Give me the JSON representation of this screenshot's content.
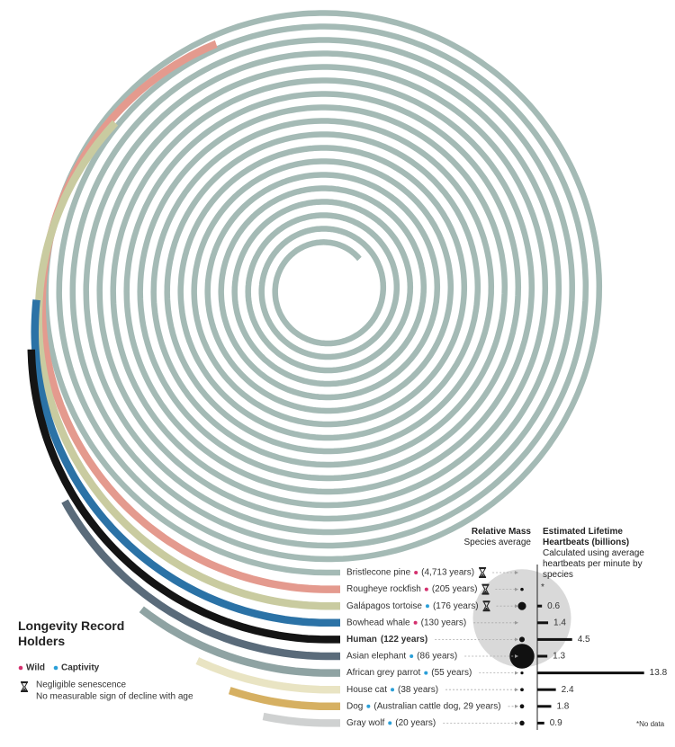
{
  "chart_data": {
    "type": "spiral",
    "title": "Longevity Record Holders",
    "legend": {
      "wild": {
        "label": "Wild",
        "color": "#d4306e"
      },
      "captivity": {
        "label": "Captivity",
        "color": "#2a9fd8"
      },
      "senescence": "Negligible senescence",
      "senescence_note": "No measurable sign of decline with age"
    },
    "mass_title": "Relative Mass",
    "mass_subtitle": "Species average",
    "heartbeats_title": "Estimated Lifetime Heartbeats (billions)",
    "heartbeats_subtitle": "Calculated using average heartbeats per minute by species",
    "no_data_mark": "*",
    "no_data_note": "*No data",
    "series": [
      {
        "name": "Bristlecone pine",
        "record": "(4,713 years)",
        "years": 4713,
        "setting": "wild",
        "negligible_senescence": true,
        "mass": null,
        "heartbeats": null,
        "color": "#a4bab5"
      },
      {
        "name": "Rougheye rockfish",
        "record": "(205 years)",
        "years": 205,
        "setting": "wild",
        "negligible_senescence": true,
        "mass": 2,
        "heartbeats": null,
        "no_data": true,
        "color": "#e49a8e"
      },
      {
        "name": "Galápagos tortoise",
        "record": "(176 years)",
        "years": 176,
        "setting": "captivity",
        "negligible_senescence": true,
        "mass": 250,
        "heartbeats": 0.6,
        "color": "#c9cba0"
      },
      {
        "name": "Bowhead whale",
        "record": "(130 years)",
        "years": 130,
        "setting": "wild",
        "negligible_senescence": false,
        "mass": 75000,
        "heartbeats": 1.4,
        "color": "#2b72a6"
      },
      {
        "name": "Human",
        "record": "(122 years)",
        "years": 122,
        "setting": null,
        "negligible_senescence": false,
        "mass": 62,
        "heartbeats": 4.5,
        "emphasis": true,
        "color": "#141414"
      },
      {
        "name": "Asian elephant",
        "record": "(86 years)",
        "years": 86,
        "setting": "captivity",
        "negligible_senescence": false,
        "mass": 4000,
        "heartbeats": 1.3,
        "color": "#5a6b7a"
      },
      {
        "name": "African grey parrot",
        "record": "(55 years)",
        "years": 55,
        "setting": "captivity",
        "negligible_senescence": false,
        "mass": 0.4,
        "heartbeats": 13.8,
        "color": "#8fa3a3"
      },
      {
        "name": "House cat",
        "record": "(38 years)",
        "years": 38,
        "setting": "captivity",
        "negligible_senescence": false,
        "mass": 4,
        "heartbeats": 2.4,
        "color": "#e9e4c3"
      },
      {
        "name": "Dog",
        "record": "(Australian cattle dog, 29 years)",
        "years": 29,
        "setting": "captivity",
        "negligible_senescence": false,
        "mass": 20,
        "heartbeats": 1.8,
        "color": "#d6b062"
      },
      {
        "name": "Gray wolf",
        "record": "(20 years)",
        "years": 20,
        "setting": "captivity",
        "negligible_senescence": false,
        "mass": 40,
        "heartbeats": 0.9,
        "color": "#cfd1d1"
      }
    ]
  }
}
